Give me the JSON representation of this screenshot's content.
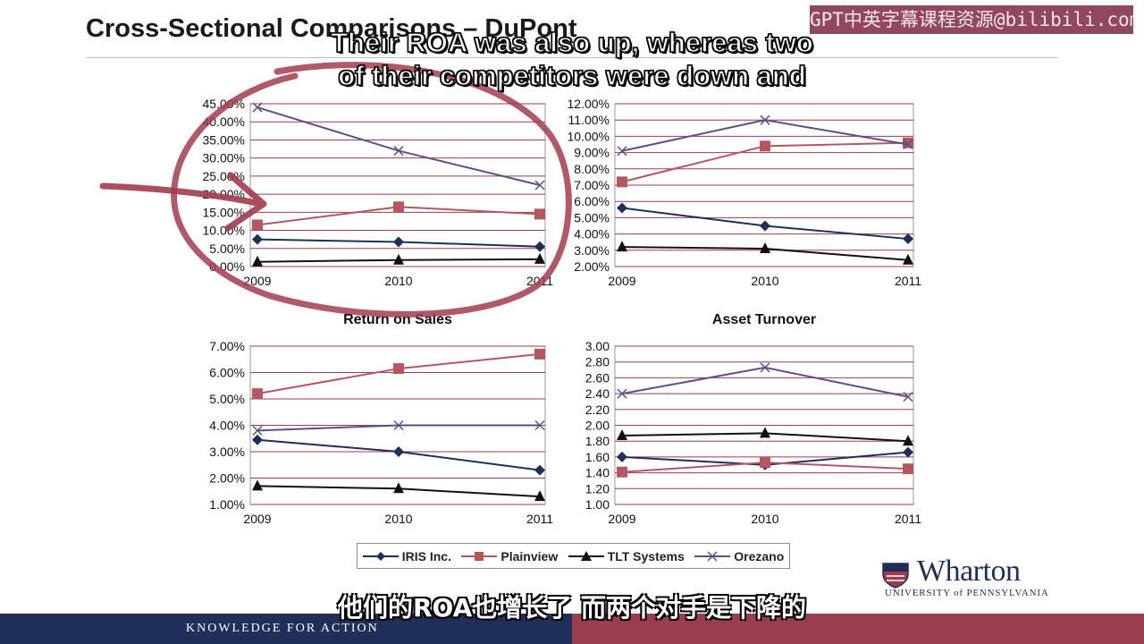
{
  "slide": {
    "title": "Cross-Sectional Comparisons – DuPont",
    "watermark": "GPT中英字幕课程资源@bilibili.com",
    "footer_text": "KNOWLEDGE FOR ACTION",
    "logo_name": "Wharton",
    "logo_university": "UNIVERSITY of PENNSYLVANIA",
    "subtitle_en_line1": "Their ROA was also up, whereas two",
    "subtitle_en_line2": "of their competitors were down and",
    "subtitle_zh": "他们的ROA也增长了 而两个对手是下降的"
  },
  "colors": {
    "grid": "#9e3b4c",
    "iris": "#1f2f5a",
    "plainview": "#b5575f",
    "tlt": "#111111",
    "orezano": "#5b4f8a",
    "annotation": "#a23c4c",
    "footer_left": "#1f2f5a",
    "footer_right": "#9a3d4e"
  },
  "legend": [
    {
      "name": "IRIS Inc.",
      "marker": "diamond",
      "color": "#1f2f5a"
    },
    {
      "name": "Plainview",
      "marker": "square",
      "color": "#b5575f"
    },
    {
      "name": "TLT Systems",
      "marker": "triangle",
      "color": "#111111"
    },
    {
      "name": "Orezano",
      "marker": "x",
      "color": "#5b4f8a"
    }
  ],
  "chart_data": [
    {
      "type": "line",
      "title": "",
      "categories": [
        "2009",
        "2010",
        "2011"
      ],
      "ylim": [
        0,
        45
      ],
      "yticks": [
        "0.00%",
        "5.00%",
        "10.00%",
        "15.00%",
        "20.00%",
        "25.00%",
        "30.00%",
        "35.00%",
        "40.00%",
        "45.00%"
      ],
      "grid": true,
      "series": [
        {
          "name": "IRIS Inc.",
          "values": [
            7.5,
            6.8,
            5.5
          ]
        },
        {
          "name": "Plainview",
          "values": [
            11.5,
            16.5,
            14.5
          ]
        },
        {
          "name": "TLT Systems",
          "values": [
            1.3,
            1.8,
            2.0
          ]
        },
        {
          "name": "Orezano",
          "values": [
            44.0,
            32.0,
            22.5
          ]
        }
      ]
    },
    {
      "type": "line",
      "title": "",
      "categories": [
        "2009",
        "2010",
        "2011"
      ],
      "ylim": [
        2,
        12
      ],
      "yticks": [
        "2.00%",
        "3.00%",
        "4.00%",
        "5.00%",
        "6.00%",
        "7.00%",
        "8.00%",
        "9.00%",
        "10.00%",
        "11.00%",
        "12.00%"
      ],
      "grid": true,
      "series": [
        {
          "name": "IRIS Inc.",
          "values": [
            5.6,
            4.5,
            3.7
          ]
        },
        {
          "name": "Plainview",
          "values": [
            7.2,
            9.4,
            9.6
          ]
        },
        {
          "name": "TLT Systems",
          "values": [
            3.2,
            3.1,
            2.4
          ]
        },
        {
          "name": "Orezano",
          "values": [
            9.1,
            11.0,
            9.5
          ]
        }
      ]
    },
    {
      "type": "line",
      "title": "Return on Sales",
      "categories": [
        "2009",
        "2010",
        "2011"
      ],
      "ylim": [
        1,
        7
      ],
      "yticks": [
        "1.00%",
        "2.00%",
        "3.00%",
        "4.00%",
        "5.00%",
        "6.00%",
        "7.00%"
      ],
      "grid": true,
      "series": [
        {
          "name": "IRIS Inc.",
          "values": [
            3.45,
            3.0,
            2.3
          ]
        },
        {
          "name": "Plainview",
          "values": [
            5.2,
            6.15,
            6.7
          ]
        },
        {
          "name": "TLT Systems",
          "values": [
            1.7,
            1.6,
            1.3
          ]
        },
        {
          "name": "Orezano",
          "values": [
            3.8,
            4.0,
            4.0
          ]
        }
      ]
    },
    {
      "type": "line",
      "title": "Asset Turnover",
      "categories": [
        "2009",
        "2010",
        "2011"
      ],
      "ylim": [
        1.0,
        3.0
      ],
      "yticks": [
        "1.00",
        "1.20",
        "1.40",
        "1.60",
        "1.80",
        "2.00",
        "2.20",
        "2.40",
        "2.60",
        "2.80",
        "3.00"
      ],
      "grid": true,
      "series": [
        {
          "name": "IRIS Inc.",
          "values": [
            1.6,
            1.5,
            1.66
          ]
        },
        {
          "name": "Plainview",
          "values": [
            1.41,
            1.53,
            1.45
          ]
        },
        {
          "name": "TLT Systems",
          "values": [
            1.87,
            1.9,
            1.8
          ]
        },
        {
          "name": "Orezano",
          "values": [
            2.4,
            2.73,
            2.36
          ]
        }
      ]
    }
  ]
}
